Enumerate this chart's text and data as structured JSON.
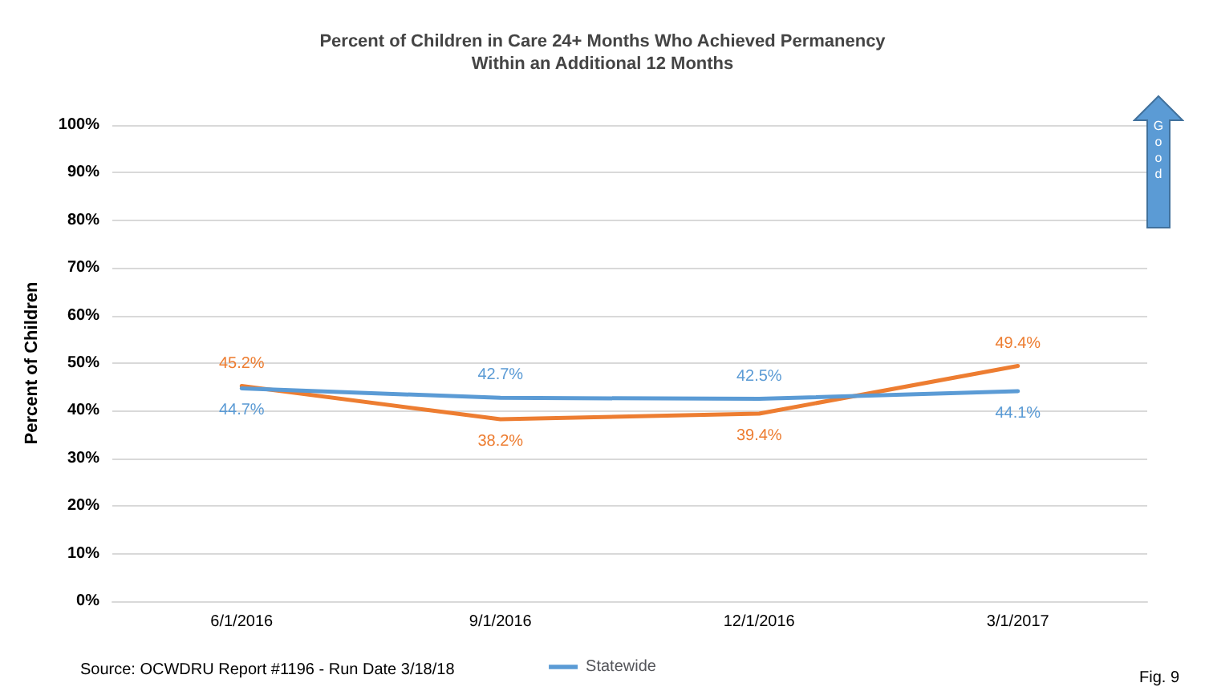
{
  "chart_data": {
    "type": "line",
    "title": "Percent of Children in Care 24+ Months Who Achieved Permanency\nWithin an Additional 12 Months",
    "ylabel": "Percent of Children",
    "categories": [
      "6/1/2016",
      "9/1/2016",
      "12/1/2016",
      "3/1/2017"
    ],
    "series": [
      {
        "color": "#ed7d31",
        "values": [
          45.2,
          38.2,
          39.4,
          49.4
        ],
        "value_labels": [
          "45.2%",
          "38.2%",
          "39.4%",
          "49.4%"
        ]
      },
      {
        "name": "Statewide",
        "color": "#5b9bd5",
        "values": [
          44.7,
          42.7,
          42.5,
          44.1
        ],
        "value_labels": [
          "44.7%",
          "42.7%",
          "42.5%",
          "44.1%"
        ]
      }
    ],
    "ylim": [
      0,
      100
    ],
    "yticks": [
      {
        "value": 0,
        "label": "0%"
      },
      {
        "value": 10,
        "label": "10%"
      },
      {
        "value": 20,
        "label": "20%"
      },
      {
        "value": 30,
        "label": "30%"
      },
      {
        "value": 40,
        "label": "40%"
      },
      {
        "value": 50,
        "label": "50%"
      },
      {
        "value": 60,
        "label": "60%"
      },
      {
        "value": 70,
        "label": "70%"
      },
      {
        "value": 80,
        "label": "80%"
      },
      {
        "value": 90,
        "label": "90%"
      },
      {
        "value": 100,
        "label": "100%"
      }
    ],
    "grid": "y",
    "legend": "bottom",
    "marker": "none",
    "annotations": [
      "Source: OCWDRU Report #1196 - Run Date 3/18/18",
      "Fig. 9",
      "Good"
    ]
  }
}
